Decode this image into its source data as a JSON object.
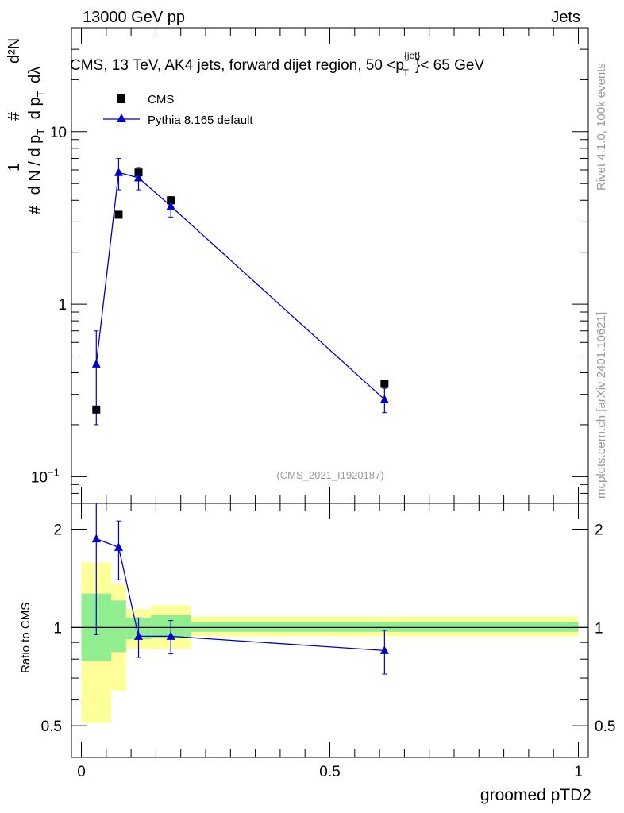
{
  "header": {
    "energy_label": "13000 GeV pp",
    "category_label": "Jets",
    "plot_title_main": "CMS, 13 TeV, AK4 jets, forward dijet region, 50 <p",
    "plot_title_sup": "{jet}",
    "plot_title_sub": "T",
    "plot_title_end": "}< 65 GeV",
    "side_rivet": "Rivet 4.1.0,  100k events",
    "side_mcplots": "mcplots.cern.ch [arXiv:2401.10621]",
    "analysis_id": "(CMS_2021_I1920187)"
  },
  "ylabel_main": {
    "hash1": "#",
    "one": "1",
    "dN_dpT": "d N / d p",
    "T1": "T",
    "hash2": "#",
    "d2N": "d²N",
    "d_pT_dlambda": "d p",
    "T2": "T",
    "dlambda": "dλ"
  },
  "legend": {
    "cms_label": "CMS",
    "pythia_label": "Pythia 8.165 default"
  },
  "ratio_ylabel": "Ratio to CMS",
  "xlabel": "groomed pTD2",
  "main_y_ticks": [
    {
      "v": 10,
      "label": "10"
    },
    {
      "v": 1,
      "label": "1"
    },
    {
      "v": 0.1,
      "label": "10",
      "sup": "−1"
    }
  ],
  "ratio_y_ticks": [
    {
      "v": 2,
      "label": "2"
    },
    {
      "v": 1,
      "label": "1"
    },
    {
      "v": 0.5,
      "label": "0.5"
    }
  ],
  "x_ticks": [
    {
      "v": 0,
      "label": "0"
    },
    {
      "v": 0.5,
      "label": "0.5"
    },
    {
      "v": 1,
      "label": "1"
    }
  ],
  "colors": {
    "cms": "#000000",
    "pythia": "#0000cc",
    "band_inner": "#90ee90",
    "band_outer": "#ffff99"
  },
  "chart_data": {
    "type": "scatter",
    "title": "CMS, 13 TeV, AK4 jets, forward dijet region, 50 < pT{jet} < 65 GeV",
    "xlabel": "groomed pTD2",
    "ylabel": "1/(dN/dpT) d²N/(dpT dλ)",
    "xlim": [
      -0.02,
      1.02
    ],
    "ylim": [
      0.07,
      40
    ],
    "yscale": "log",
    "ratio_ylim": [
      0.4,
      2.4
    ],
    "ratio_yscale": "log",
    "bins": [
      {
        "lo": 0.0,
        "hi": 0.06,
        "x": 0.03,
        "cms": 0.245,
        "pythia": 0.45,
        "pythia_err": 0.25,
        "ratio": 1.87,
        "ratio_err": 0.92,
        "band_inner": [
          0.79,
          1.27
        ],
        "band_outer": [
          0.51,
          1.58
        ]
      },
      {
        "lo": 0.06,
        "hi": 0.09,
        "x": 0.075,
        "cms": 3.3,
        "pythia": 5.8,
        "pythia_err": 1.2,
        "ratio": 1.76,
        "ratio_err": 0.36,
        "band_inner": [
          0.84,
          1.21
        ],
        "band_outer": [
          0.64,
          1.36
        ]
      },
      {
        "lo": 0.09,
        "hi": 0.14,
        "x": 0.115,
        "cms": 5.8,
        "pythia": 5.4,
        "pythia_err": 0.8,
        "ratio": 0.94,
        "ratio_err": 0.13,
        "band_inner": [
          0.92,
          1.07
        ],
        "band_outer": [
          0.86,
          1.14
        ]
      },
      {
        "lo": 0.14,
        "hi": 0.22,
        "x": 0.18,
        "cms": 4.0,
        "pythia": 3.7,
        "pythia_err": 0.5,
        "ratio": 0.94,
        "ratio_err": 0.11,
        "band_inner": [
          0.93,
          1.09
        ],
        "band_outer": [
          0.86,
          1.17
        ]
      },
      {
        "lo": 0.22,
        "hi": 1.0,
        "x": 0.61,
        "cms": 0.345,
        "pythia": 0.28,
        "pythia_err": 0.045,
        "ratio": 0.85,
        "ratio_err": 0.13,
        "band_inner": [
          0.97,
          1.04
        ],
        "band_outer": [
          0.94,
          1.08
        ]
      }
    ],
    "legend": [
      "CMS",
      "Pythia 8.165 default"
    ]
  }
}
